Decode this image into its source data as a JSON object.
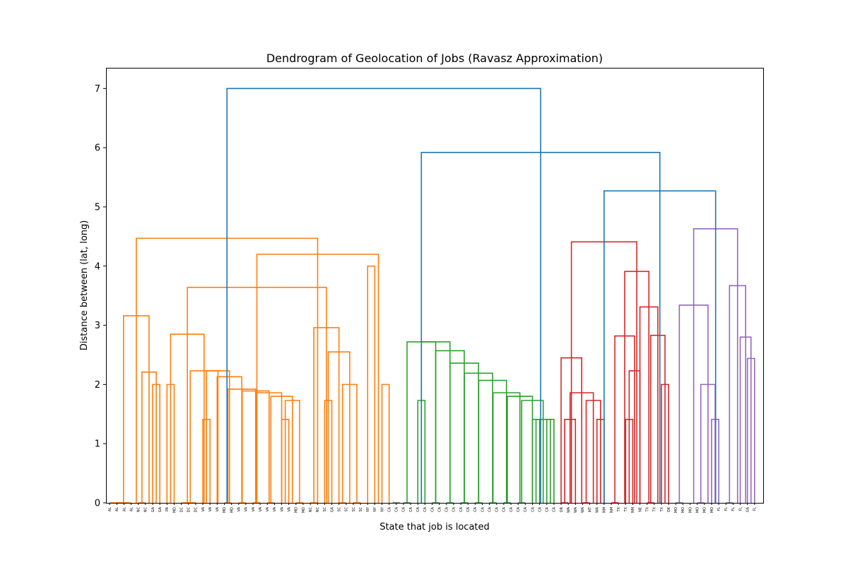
{
  "chart_data": {
    "type": "dendrogram",
    "title": "Dendrogram of Geolocation of Jobs (Ravasz Approximation)",
    "xlabel": "State that job is located",
    "ylabel": "Distance between (lat, long)",
    "ylim": [
      0,
      7.35
    ],
    "yticks": [
      0,
      1,
      2,
      3,
      4,
      5,
      6,
      7
    ],
    "grid": false,
    "leaf_labels": [
      "AL",
      "AL",
      "AL",
      "AL",
      "NC",
      "NC",
      "GA",
      "GA",
      "PA",
      "MD",
      "DC",
      "DC",
      "DC",
      "VA",
      "VA",
      "VA",
      "MD",
      "MD",
      "VA",
      "VA",
      "VA",
      "VA",
      "VA",
      "VA",
      "VA",
      "VA",
      "MD",
      "MD",
      "NC",
      "NC",
      "SC",
      "GA",
      "SC",
      "SC",
      "SC",
      "SC",
      "NY",
      "NY",
      "NY",
      "CA",
      "CA",
      "CA",
      "CA",
      "CA",
      "CA",
      "CA",
      "CA",
      "CA",
      "CA",
      "CA",
      "CA",
      "CA",
      "CA",
      "CA",
      "CA",
      "CA",
      "CA",
      "CA",
      "CA",
      "CA",
      "CA",
      "CA",
      "CA",
      "OR",
      "WA",
      "WA",
      "WA",
      "MT",
      "WA",
      "NM",
      "NM",
      "TX",
      "TX",
      "NM",
      "NE",
      "TX",
      "TX",
      "TX",
      "OK",
      "MO",
      "MO",
      "MO",
      "MO",
      "MO",
      "MO",
      "FL",
      "FL",
      "FL",
      "FL",
      "GA",
      "FL"
    ],
    "cluster_colors": {
      "orange": "#ff7f0e",
      "green": "#2ca02c",
      "red": "#d62728",
      "purple": "#9467bd",
      "above_threshold": "#1f77b4"
    },
    "linkages": [
      {
        "left_x": 2.5,
        "right_x": 1.0,
        "height": 0,
        "color": "#ff7f0e"
      },
      {
        "left_x": 0.0,
        "right_x": 1.75,
        "height": 0,
        "color": "#ff7f0e"
      },
      {
        "left_x": 3.0,
        "right_x": 0.875,
        "height": 0,
        "color": "#ff7f0e"
      },
      {
        "left_x": 4.0,
        "right_x": 5.0,
        "height": 0,
        "color": "#ff7f0e"
      },
      {
        "left_x": 6.0,
        "right_x": 7.0,
        "height": 2.0,
        "color": "#ff7f0e"
      },
      {
        "left_x": 4.5,
        "right_x": 6.5,
        "height": 2.21,
        "color": "#ff7f0e"
      },
      {
        "left_x": 1.9375,
        "right_x": 5.5,
        "height": 3.16,
        "color": "#ff7f0e"
      },
      {
        "left_x": 8.0,
        "right_x": 9.0,
        "height": 2.0,
        "color": "#ff7f0e"
      },
      {
        "left_x": 10.0,
        "right_x": 11.0,
        "height": 0,
        "color": "#ff7f0e"
      },
      {
        "left_x": 10.5,
        "right_x": 12.0,
        "height": 0,
        "color": "#ff7f0e"
      },
      {
        "left_x": 13.0,
        "right_x": 14.0,
        "height": 1.41,
        "color": "#ff7f0e"
      },
      {
        "left_x": 16.0,
        "right_x": 17.0,
        "height": 0,
        "color": "#ff7f0e"
      },
      {
        "left_x": 18.0,
        "right_x": 19.0,
        "height": 0,
        "color": "#ff7f0e"
      },
      {
        "left_x": 20.0,
        "right_x": 21.0,
        "height": 0,
        "color": "#ff7f0e"
      },
      {
        "left_x": 22.0,
        "right_x": 23.0,
        "height": 0,
        "color": "#ff7f0e"
      },
      {
        "left_x": 24.0,
        "right_x": 25.0,
        "height": 1.41,
        "color": "#ff7f0e"
      },
      {
        "left_x": 26.0,
        "right_x": 27.0,
        "height": 0,
        "color": "#ff7f0e"
      },
      {
        "left_x": 24.5,
        "right_x": 26.5,
        "height": 1.73,
        "color": "#ff7f0e"
      },
      {
        "left_x": 22.5,
        "right_x": 25.5,
        "height": 1.8,
        "color": "#ff7f0e"
      },
      {
        "left_x": 20.5,
        "right_x": 24.0,
        "height": 1.86,
        "color": "#ff7f0e"
      },
      {
        "left_x": 18.5,
        "right_x": 22.25,
        "height": 1.89,
        "color": "#ff7f0e"
      },
      {
        "left_x": 16.5,
        "right_x": 20.375,
        "height": 1.92,
        "color": "#ff7f0e"
      },
      {
        "left_x": 15.0,
        "right_x": 18.4375,
        "height": 2.13,
        "color": "#ff7f0e"
      },
      {
        "left_x": 13.5,
        "right_x": 16.71875,
        "height": 2.23,
        "color": "#ff7f0e"
      },
      {
        "left_x": 11.25,
        "right_x": 15.109375,
        "height": 2.23,
        "color": "#ff7f0e"
      },
      {
        "left_x": 8.5,
        "right_x": 13.1796875,
        "height": 2.85,
        "color": "#ff7f0e"
      },
      {
        "left_x": 28.0,
        "right_x": 29.0,
        "height": 0,
        "color": "#ff7f0e"
      },
      {
        "left_x": 30.0,
        "right_x": 31.0,
        "height": 1.73,
        "color": "#ff7f0e"
      },
      {
        "left_x": 32.0,
        "right_x": 33.0,
        "height": 0,
        "color": "#ff7f0e"
      },
      {
        "left_x": 34.0,
        "right_x": 35.0,
        "height": 0,
        "color": "#ff7f0e"
      },
      {
        "left_x": 32.5,
        "right_x": 34.5,
        "height": 2.0,
        "color": "#ff7f0e"
      },
      {
        "left_x": 30.5,
        "right_x": 33.5,
        "height": 2.55,
        "color": "#ff7f0e"
      },
      {
        "left_x": 28.5,
        "right_x": 32.0,
        "height": 2.96,
        "color": "#ff7f0e"
      },
      {
        "left_x": 10.83984375,
        "right_x": 30.25,
        "height": 3.64,
        "color": "#ff7f0e"
      },
      {
        "left_x": 36.0,
        "right_x": 37.0,
        "height": 4.0,
        "color": "#ff7f0e"
      },
      {
        "left_x": 38.0,
        "right_x": 39.0,
        "height": 2.0,
        "color": "#ff7f0e"
      },
      {
        "left_x": 20.544921875,
        "right_x": 37.5,
        "height": 4.2,
        "color": "#ff7f0e"
      },
      {
        "left_x": 3.71875,
        "right_x": 29.0224609375,
        "height": 4.47,
        "color": "#ff7f0e"
      },
      {
        "left_x": 39.5,
        "right_x": 40.5,
        "height": 0,
        "color": "#2ca02c"
      },
      {
        "left_x": 41.0,
        "right_x": 42.0,
        "height": 0,
        "color": "#2ca02c"
      },
      {
        "left_x": 43.0,
        "right_x": 44.0,
        "height": 1.73,
        "color": "#2ca02c"
      },
      {
        "left_x": 45.0,
        "right_x": 46.0,
        "height": 0,
        "color": "#2ca02c"
      },
      {
        "left_x": 47.0,
        "right_x": 48.0,
        "height": 0,
        "color": "#2ca02c"
      },
      {
        "left_x": 49.0,
        "right_x": 50.0,
        "height": 0,
        "color": "#2ca02c"
      },
      {
        "left_x": 51.0,
        "right_x": 52.0,
        "height": 0,
        "color": "#2ca02c"
      },
      {
        "left_x": 53.0,
        "right_x": 54.0,
        "height": 0,
        "color": "#2ca02c"
      },
      {
        "left_x": 55.0,
        "right_x": 56.0,
        "height": 0,
        "color": "#2ca02c"
      },
      {
        "left_x": 57.0,
        "right_x": 58.0,
        "height": 0,
        "color": "#2ca02c"
      },
      {
        "left_x": 59.0,
        "right_x": 60.0,
        "height": 1.41,
        "color": "#2ca02c"
      },
      {
        "left_x": 61.0,
        "right_x": 62.0,
        "height": 1.41,
        "color": "#2ca02c"
      },
      {
        "left_x": 59.5,
        "right_x": 61.5,
        "height": 1.41,
        "color": "#2ca02c"
      },
      {
        "left_x": 57.5,
        "right_x": 60.5,
        "height": 1.73,
        "color": "#2ca02c"
      },
      {
        "left_x": 55.5,
        "right_x": 59.0,
        "height": 1.8,
        "color": "#2ca02c"
      },
      {
        "left_x": 53.5,
        "right_x": 57.25,
        "height": 1.86,
        "color": "#2ca02c"
      },
      {
        "left_x": 51.5,
        "right_x": 55.375,
        "height": 2.07,
        "color": "#2ca02c"
      },
      {
        "left_x": 49.5,
        "right_x": 53.4375,
        "height": 2.19,
        "color": "#2ca02c"
      },
      {
        "left_x": 47.5,
        "right_x": 51.46875,
        "height": 2.36,
        "color": "#2ca02c"
      },
      {
        "left_x": 45.5,
        "right_x": 49.484375,
        "height": 2.57,
        "color": "#2ca02c"
      },
      {
        "left_x": 43.5,
        "right_x": 47.4921875,
        "height": 2.72,
        "color": "#2ca02c"
      },
      {
        "left_x": 41.5,
        "right_x": 45.49609375,
        "height": 2.72,
        "color": "#2ca02c"
      },
      {
        "left_x": 63.0,
        "right_x": 64.0,
        "height": 0,
        "color": "#d62728"
      },
      {
        "left_x": 63.5,
        "right_x": 65.0,
        "height": 1.41,
        "color": "#d62728"
      },
      {
        "left_x": 66.0,
        "right_x": 67.0,
        "height": 0,
        "color": "#d62728"
      },
      {
        "left_x": 68.0,
        "right_x": 69.0,
        "height": 1.41,
        "color": "#d62728"
      },
      {
        "left_x": 66.5,
        "right_x": 68.5,
        "height": 1.73,
        "color": "#d62728"
      },
      {
        "left_x": 64.25,
        "right_x": 67.5,
        "height": 1.86,
        "color": "#d62728"
      },
      {
        "left_x": 63.0,
        "right_x": 65.875,
        "height": 2.45,
        "color": "#d62728"
      },
      {
        "left_x": 70.0,
        "right_x": 71.0,
        "height": 0,
        "color": "#d62728"
      },
      {
        "left_x": 72.0,
        "right_x": 73.0,
        "height": 1.41,
        "color": "#d62728"
      },
      {
        "left_x": 74.0,
        "right_x": 72.5,
        "height": 2.23,
        "color": "#d62728"
      },
      {
        "left_x": 70.5,
        "right_x": 73.25,
        "height": 2.82,
        "color": "#d62728"
      },
      {
        "left_x": 75.0,
        "right_x": 76.0,
        "height": 0,
        "color": "#d62728"
      },
      {
        "left_x": 77.0,
        "right_x": 78.0,
        "height": 2.0,
        "color": "#d62728"
      },
      {
        "left_x": 75.5,
        "right_x": 77.5,
        "height": 2.83,
        "color": "#d62728"
      },
      {
        "left_x": 74.0,
        "right_x": 76.5,
        "height": 3.31,
        "color": "#d62728"
      },
      {
        "left_x": 71.875,
        "right_x": 75.25,
        "height": 3.91,
        "color": "#d62728"
      },
      {
        "left_x": 64.4375,
        "right_x": 73.5625,
        "height": 4.41,
        "color": "#d62728"
      },
      {
        "left_x": 79.0,
        "right_x": 80.0,
        "height": 0,
        "color": "#9467bd"
      },
      {
        "left_x": 82.0,
        "right_x": 83.0,
        "height": 0,
        "color": "#9467bd"
      },
      {
        "left_x": 84.0,
        "right_x": 85.0,
        "height": 1.41,
        "color": "#9467bd"
      },
      {
        "left_x": 82.5,
        "right_x": 84.5,
        "height": 2.0,
        "color": "#9467bd"
      },
      {
        "left_x": 79.5,
        "right_x": 83.5,
        "height": 3.34,
        "color": "#9467bd"
      },
      {
        "left_x": 86.0,
        "right_x": 87.0,
        "height": 0,
        "color": "#9467bd"
      },
      {
        "left_x": 89.0,
        "right_x": 90.0,
        "height": 2.44,
        "color": "#9467bd"
      },
      {
        "left_x": 88.0,
        "right_x": 89.5,
        "height": 2.8,
        "color": "#9467bd"
      },
      {
        "left_x": 86.5,
        "right_x": 88.75,
        "height": 3.67,
        "color": "#9467bd"
      },
      {
        "left_x": 81.5,
        "right_x": 87.625,
        "height": 4.63,
        "color": "#9467bd"
      },
      {
        "left_x": 69.0,
        "right_x": 84.5625,
        "height": 5.27,
        "color": "#1f77b4"
      },
      {
        "left_x": 43.498046875,
        "right_x": 76.78125,
        "height": 5.92,
        "color": "#1f77b4"
      },
      {
        "left_x": 16.37060546875,
        "right_x": 60.1396484375,
        "height": 7.0,
        "color": "#1f77b4"
      }
    ]
  }
}
